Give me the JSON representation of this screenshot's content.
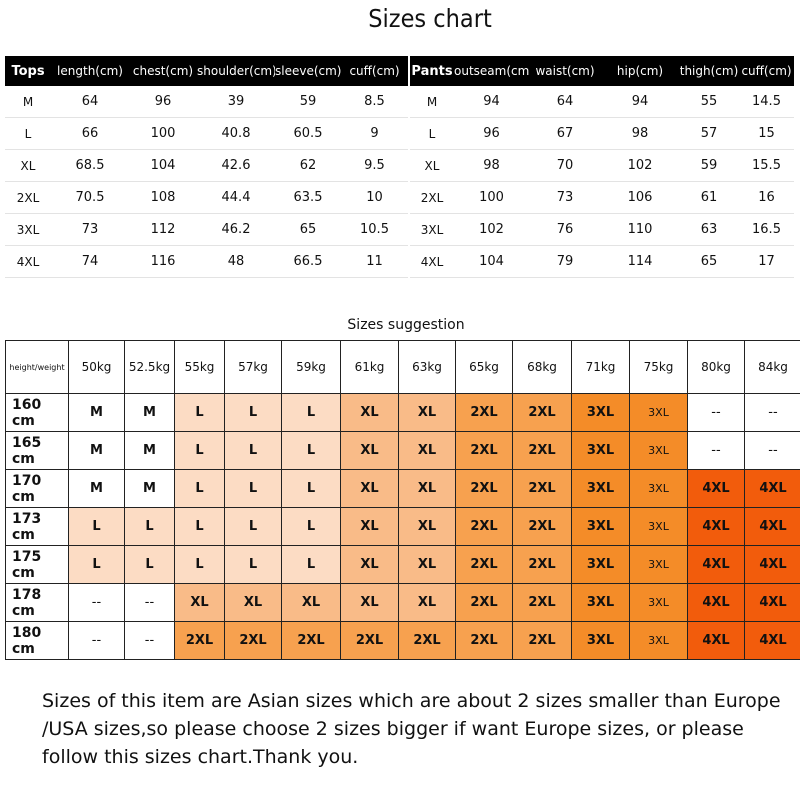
{
  "title": "Sizes chart",
  "tops": {
    "headers": [
      "Tops",
      "length(cm)",
      "chest(cm)",
      "shoulder(cm)",
      "sleeve(cm)",
      "cuff(cm)"
    ],
    "rows": [
      [
        "M",
        "64",
        "96",
        "39",
        "59",
        "8.5"
      ],
      [
        "L",
        "66",
        "100",
        "40.8",
        "60.5",
        "9"
      ],
      [
        "XL",
        "68.5",
        "104",
        "42.6",
        "62",
        "9.5"
      ],
      [
        "2XL",
        "70.5",
        "108",
        "44.4",
        "63.5",
        "10"
      ],
      [
        "3XL",
        "73",
        "112",
        "46.2",
        "65",
        "10.5"
      ],
      [
        "4XL",
        "74",
        "116",
        "48",
        "66.5",
        "11"
      ]
    ]
  },
  "pants": {
    "headers": [
      "Pants",
      "outseam(cm)",
      "waist(cm)",
      "hip(cm)",
      "thigh(cm)",
      "cuff(cm)"
    ],
    "rows": [
      [
        "M",
        "94",
        "64",
        "94",
        "55",
        "14.5"
      ],
      [
        "L",
        "96",
        "67",
        "98",
        "57",
        "15"
      ],
      [
        "XL",
        "98",
        "70",
        "102",
        "59",
        "15.5"
      ],
      [
        "2XL",
        "100",
        "73",
        "106",
        "61",
        "16"
      ],
      [
        "3XL",
        "102",
        "76",
        "110",
        "63",
        "16.5"
      ],
      [
        "4XL",
        "104",
        "79",
        "114",
        "65",
        "17"
      ]
    ]
  },
  "suggestion": {
    "title": "Sizes suggestion",
    "corner": "height/weight",
    "weights": [
      "50kg",
      "52.5kg",
      "55kg",
      "57kg",
      "59kg",
      "61kg",
      "63kg",
      "65kg",
      "68kg",
      "71kg",
      "75kg",
      "80kg",
      "84kg"
    ],
    "rows": [
      {
        "height": "160 cm",
        "sizes": [
          "M",
          "M",
          "L",
          "L",
          "L",
          "XL",
          "XL",
          "2XL",
          "2XL",
          "3XL",
          "3XL",
          "--",
          "--"
        ]
      },
      {
        "height": "165 cm",
        "sizes": [
          "M",
          "M",
          "L",
          "L",
          "L",
          "XL",
          "XL",
          "2XL",
          "2XL",
          "3XL",
          "3XL",
          "--",
          "--"
        ]
      },
      {
        "height": "170 cm",
        "sizes": [
          "M",
          "M",
          "L",
          "L",
          "L",
          "XL",
          "XL",
          "2XL",
          "2XL",
          "3XL",
          "3XL",
          "4XL",
          "4XL"
        ]
      },
      {
        "height": "173 cm",
        "sizes": [
          "L",
          "L",
          "L",
          "L",
          "L",
          "XL",
          "XL",
          "2XL",
          "2XL",
          "3XL",
          "3XL",
          "4XL",
          "4XL"
        ]
      },
      {
        "height": "175 cm",
        "sizes": [
          "L",
          "L",
          "L",
          "L",
          "L",
          "XL",
          "XL",
          "2XL",
          "2XL",
          "3XL",
          "3XL",
          "4XL",
          "4XL"
        ]
      },
      {
        "height": "178 cm",
        "sizes": [
          "--",
          "--",
          "XL",
          "XL",
          "XL",
          "XL",
          "XL",
          "2XL",
          "2XL",
          "3XL",
          "3XL",
          "4XL",
          "4XL"
        ]
      },
      {
        "height": "180 cm",
        "sizes": [
          "--",
          "--",
          "2XL",
          "2XL",
          "2XL",
          "2XL",
          "2XL",
          "2XL",
          "2XL",
          "3XL",
          "3XL",
          "4XL",
          "4XL"
        ]
      }
    ]
  },
  "note": "Sizes of this item are Asian sizes which are about 2 sizes smaller than Europe /USA sizes,so please choose 2 sizes bigger if want Europe sizes, or please follow this sizes chart.Thank you."
}
